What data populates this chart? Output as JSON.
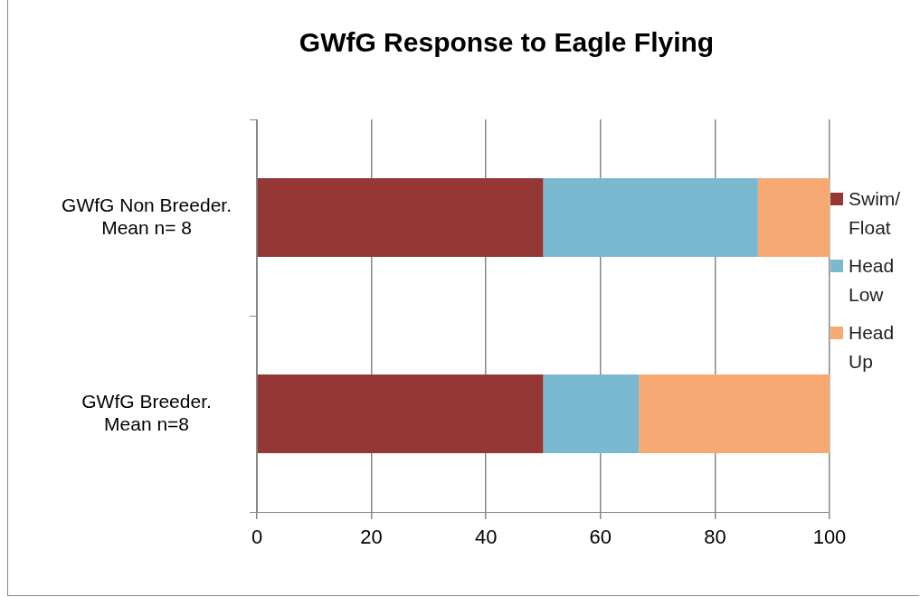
{
  "chart_data": {
    "type": "bar",
    "title": "GWfG Response to Eagle Flying",
    "orientation": "horizontal",
    "stacked": true,
    "categories": [
      "GWfG Non Breeder. Mean n= 8",
      "GWfG Breeder. Mean n=8"
    ],
    "series": [
      {
        "name": "Swim/ Float",
        "color": "#953735",
        "values": [
          50,
          50
        ]
      },
      {
        "name": "Head Low",
        "color": "#7ab9cf",
        "values": [
          37.5,
          16.7
        ]
      },
      {
        "name": "Head Up",
        "color": "#f7a974",
        "values": [
          12.5,
          33.3
        ]
      }
    ],
    "xlim": [
      0,
      100
    ],
    "xticks": [
      0,
      20,
      40,
      60,
      80,
      100
    ],
    "grid": "x",
    "legend": "right"
  }
}
